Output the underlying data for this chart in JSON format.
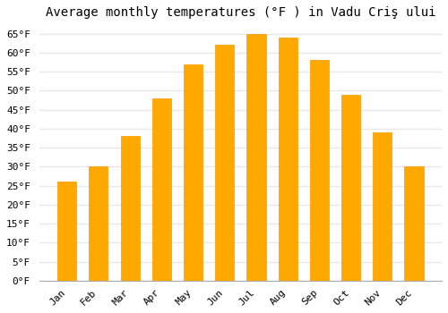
{
  "title": "Average monthly temperatures (°F ) in Vadu Criş ului",
  "months": [
    "Jan",
    "Feb",
    "Mar",
    "Apr",
    "May",
    "Jun",
    "Jul",
    "Aug",
    "Sep",
    "Oct",
    "Nov",
    "Dec"
  ],
  "values": [
    26,
    30,
    38,
    48,
    57,
    62,
    65,
    64,
    58,
    49,
    39,
    30
  ],
  "bar_color": "#FFA800",
  "bar_edge_color": "#FF9900",
  "background_color": "#FFFFFF",
  "grid_color": "#E8E8E8",
  "ytick_step": 5,
  "ymin": 0,
  "ymax": 67,
  "title_fontsize": 10,
  "tick_fontsize": 8,
  "font_family": "monospace"
}
